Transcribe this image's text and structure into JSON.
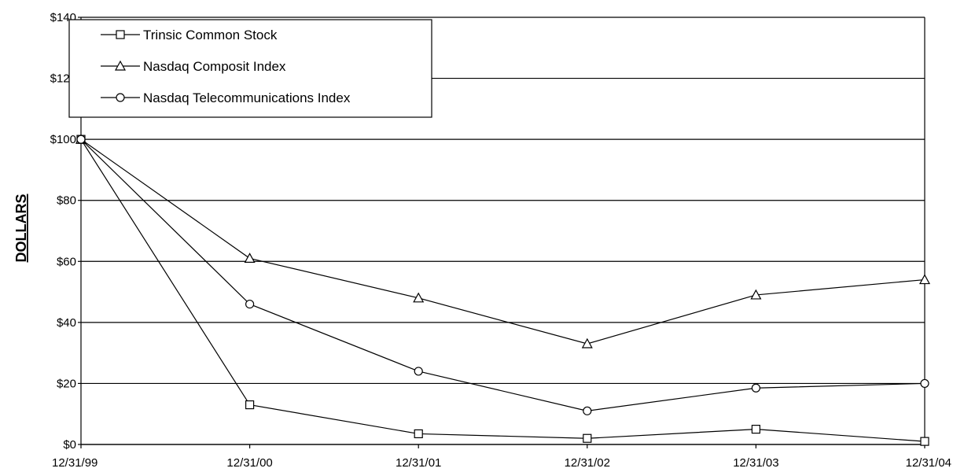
{
  "chart_data": {
    "type": "line",
    "title": "",
    "xlabel": "",
    "ylabel": "DOLLARS",
    "ylim": [
      0,
      140
    ],
    "yticks": [
      0,
      20,
      40,
      60,
      80,
      100,
      120,
      140
    ],
    "ytick_labels": [
      "$0",
      "$20",
      "$40",
      "$60",
      "$80",
      "$100",
      "$120",
      "$140"
    ],
    "categories": [
      "12/31/99",
      "12/31/00",
      "12/31/01",
      "12/31/02",
      "12/31/03",
      "12/31/04"
    ],
    "grid": "horizontal",
    "legend_position": "top-left",
    "series": [
      {
        "name": "Trinsic Common Stock",
        "marker": "square",
        "values": [
          100,
          13,
          3.5,
          2,
          5,
          1
        ]
      },
      {
        "name": "Nasdaq Composit Index",
        "marker": "triangle",
        "values": [
          100,
          61,
          48,
          33,
          49,
          54
        ]
      },
      {
        "name": "Nasdaq Telecommunications Index",
        "marker": "circle",
        "values": [
          100,
          46,
          24,
          11,
          18.5,
          20
        ]
      }
    ],
    "colors": {
      "line": "#000000",
      "marker_fill": "#ffffff",
      "grid": "#000000"
    }
  }
}
